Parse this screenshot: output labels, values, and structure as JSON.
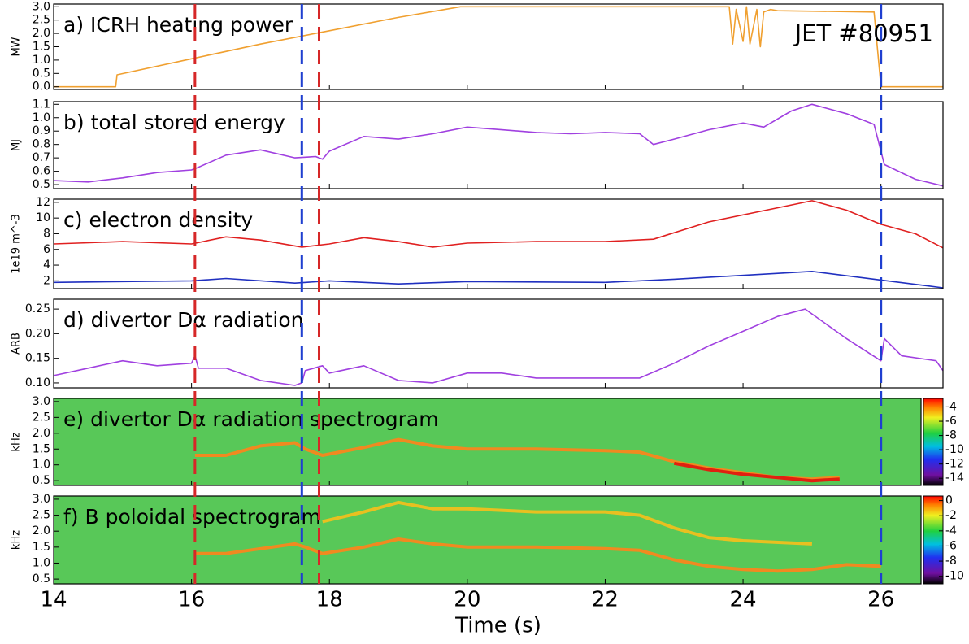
{
  "chart_data": [
    {
      "type": "line",
      "title": "a) ICRH heating power",
      "ylabel": "MW",
      "annotation": "JET #80951",
      "xlim": [
        14,
        26.9
      ],
      "ylim": [
        -0.1,
        3.1
      ],
      "yticks": [
        {
          "value": 0,
          "label": "0.0"
        },
        0.5,
        {
          "value": 1,
          "label": "1.0"
        },
        1.5,
        {
          "value": 2,
          "label": "2.0"
        },
        2.5,
        {
          "value": 3,
          "label": "3.0"
        }
      ],
      "series": [
        {
          "color": "#f0a030",
          "x": [
            14,
            14.9,
            14.92,
            16,
            17,
            18,
            19,
            19.9,
            23.8,
            23.85,
            23.9,
            24.0,
            24.05,
            24.1,
            24.2,
            24.25,
            24.3,
            24.4,
            24.5,
            25.9,
            26.0,
            26.9
          ],
          "values": [
            0,
            0,
            0.45,
            1.05,
            1.6,
            2.1,
            2.6,
            3.0,
            3.0,
            1.6,
            2.9,
            1.7,
            3.0,
            1.6,
            2.9,
            1.5,
            2.8,
            2.9,
            2.85,
            2.8,
            0,
            0
          ]
        }
      ]
    },
    {
      "type": "line",
      "title": "b) total stored energy",
      "ylabel": "MJ",
      "xlim": [
        14,
        26.9
      ],
      "ylim": [
        0.47,
        1.12
      ],
      "yticks": [
        0.5,
        0.6,
        0.7,
        0.8,
        0.9,
        {
          "value": 1,
          "label": "1.0"
        },
        1.1
      ],
      "series": [
        {
          "color": "#a040e0",
          "x": [
            14,
            14.5,
            15,
            15.5,
            16,
            16.1,
            16.5,
            17,
            17.5,
            17.8,
            17.9,
            18,
            18.5,
            19,
            19.5,
            20,
            20.5,
            21,
            21.5,
            22,
            22.5,
            22.7,
            23,
            23.5,
            24,
            24.3,
            24.7,
            25,
            25.5,
            25.9,
            26.05,
            26.5,
            26.9
          ],
          "values": [
            0.53,
            0.52,
            0.55,
            0.59,
            0.61,
            0.63,
            0.72,
            0.76,
            0.7,
            0.71,
            0.69,
            0.75,
            0.86,
            0.84,
            0.88,
            0.93,
            0.91,
            0.89,
            0.88,
            0.89,
            0.88,
            0.8,
            0.84,
            0.91,
            0.96,
            0.93,
            1.05,
            1.1,
            1.03,
            0.95,
            0.65,
            0.54,
            0.49
          ]
        }
      ]
    },
    {
      "type": "line",
      "title": "c) electron density",
      "ylabel": "1e19 m^-3",
      "xlim": [
        14,
        26.9
      ],
      "ylim": [
        1,
        12.4
      ],
      "yticks": [
        2,
        4,
        6,
        8,
        10,
        12
      ],
      "series": [
        {
          "color": "#e02020",
          "x": [
            14,
            15,
            16,
            16.5,
            17,
            17.6,
            18,
            18.5,
            19,
            19.5,
            20,
            21,
            22,
            22.7,
            23.5,
            24.5,
            25,
            25.5,
            26,
            26.5,
            26.9
          ],
          "values": [
            6.7,
            7.0,
            6.7,
            7.6,
            7.2,
            6.3,
            6.7,
            7.5,
            7.0,
            6.3,
            6.8,
            7.0,
            7.0,
            7.3,
            9.5,
            11.3,
            12.2,
            11.0,
            9.2,
            8.0,
            6.2
          ]
        },
        {
          "color": "#2030c0",
          "x": [
            14,
            16,
            16.5,
            17.5,
            18,
            19,
            20,
            22,
            23,
            25,
            26,
            26.9
          ],
          "values": [
            1.8,
            2.0,
            2.3,
            1.7,
            2.0,
            1.6,
            1.9,
            1.8,
            2.2,
            3.2,
            2.1,
            1.1
          ]
        }
      ]
    },
    {
      "type": "line",
      "title": "d) divertor Dα radiation",
      "ylabel": "ARB",
      "xlim": [
        14,
        26.9
      ],
      "ylim": [
        0.09,
        0.27
      ],
      "yticks": [
        {
          "value": 0.1,
          "label": "0.10"
        },
        0.15,
        {
          "value": 0.2,
          "label": "0.20"
        },
        0.25
      ],
      "series": [
        {
          "color": "#a040e0",
          "x": [
            14,
            14.5,
            15,
            15.5,
            16,
            16.05,
            16.1,
            16.5,
            17,
            17.5,
            17.6,
            17.65,
            17.9,
            18,
            18.5,
            19,
            19.5,
            20,
            20.5,
            21,
            22,
            22.5,
            23,
            23.5,
            24,
            24.5,
            24.9,
            25.5,
            26,
            26.05,
            26.3,
            26.8,
            26.9
          ],
          "values": [
            0.115,
            0.13,
            0.145,
            0.135,
            0.14,
            0.155,
            0.13,
            0.13,
            0.105,
            0.095,
            0.1,
            0.125,
            0.135,
            0.12,
            0.135,
            0.105,
            0.1,
            0.12,
            0.12,
            0.11,
            0.11,
            0.11,
            0.14,
            0.175,
            0.205,
            0.235,
            0.25,
            0.19,
            0.145,
            0.19,
            0.155,
            0.145,
            0.125
          ]
        }
      ]
    },
    {
      "type": "spectrogram",
      "title": "e) divertor Dα radiation spectrogram",
      "ylabel": "kHz",
      "xlim": [
        14,
        26.9
      ],
      "ylim": [
        0.35,
        3.1
      ],
      "yticks": [
        0.5,
        {
          "value": 1,
          "label": "1.0"
        },
        1.5,
        {
          "value": 2,
          "label": "2.0"
        },
        2.5,
        {
          "value": 3,
          "label": "3.0"
        }
      ],
      "clim": [
        -15,
        -2.8
      ],
      "cticks": [
        -4,
        -6,
        -8,
        -10,
        -12,
        -14
      ],
      "series": [
        {
          "color": "#f08a20",
          "x": [
            16.05,
            16.5,
            17,
            17.5,
            17.65,
            17.9,
            18.5,
            19,
            19.5,
            20,
            21,
            22,
            22.5,
            23,
            23.5,
            24,
            24.5,
            25,
            25.4
          ],
          "values": [
            1.3,
            1.3,
            1.6,
            1.7,
            1.5,
            1.3,
            1.55,
            1.8,
            1.6,
            1.5,
            1.5,
            1.45,
            1.4,
            1.1,
            0.9,
            0.75,
            0.6,
            0.55,
            0.6
          ]
        },
        {
          "color": "#e02010",
          "x": [
            23,
            23.5,
            24,
            24.5,
            25,
            25.4
          ],
          "values": [
            1.05,
            0.85,
            0.7,
            0.6,
            0.5,
            0.55
          ]
        }
      ]
    },
    {
      "type": "spectrogram",
      "title": "f) B poloidal spectrogram",
      "ylabel": "kHz",
      "xlabel": "Time (s)",
      "xlim": [
        14,
        26.9
      ],
      "ylim": [
        0.35,
        3.1
      ],
      "yticks": [
        0.5,
        {
          "value": 1,
          "label": "1.0"
        },
        1.5,
        {
          "value": 2,
          "label": "2.0"
        },
        2.5,
        {
          "value": 3,
          "label": "3.0"
        }
      ],
      "xticks": [
        14,
        16,
        18,
        20,
        22,
        24,
        26
      ],
      "clim": [
        -11,
        0.6
      ],
      "cticks": [
        0,
        -2,
        -4,
        -6,
        -8,
        -10
      ],
      "series": [
        {
          "color": "#f08a20",
          "x": [
            16.05,
            16.5,
            17,
            17.5,
            17.65,
            17.9,
            18.5,
            19,
            19.5,
            20,
            21,
            22,
            22.5,
            23,
            23.5,
            24,
            24.5,
            25,
            25.5,
            26
          ],
          "values": [
            1.3,
            1.3,
            1.45,
            1.6,
            1.5,
            1.3,
            1.5,
            1.75,
            1.6,
            1.5,
            1.5,
            1.45,
            1.4,
            1.1,
            0.9,
            0.8,
            0.75,
            0.8,
            0.95,
            0.9
          ]
        },
        {
          "color": "#e8c020",
          "x": [
            17.9,
            18.5,
            19,
            19.5,
            20,
            21,
            22,
            22.5,
            23,
            23.5,
            24,
            25
          ],
          "values": [
            2.3,
            2.6,
            2.9,
            2.7,
            2.7,
            2.6,
            2.6,
            2.5,
            2.1,
            1.8,
            1.7,
            1.6
          ]
        }
      ]
    }
  ],
  "markers": [
    {
      "x": 16.05,
      "color": "#d62728"
    },
    {
      "x": 17.6,
      "color": "#1f3fd0"
    },
    {
      "x": 17.85,
      "color": "#d62728"
    },
    {
      "x": 26.0,
      "color": "#1f3fd0"
    }
  ]
}
